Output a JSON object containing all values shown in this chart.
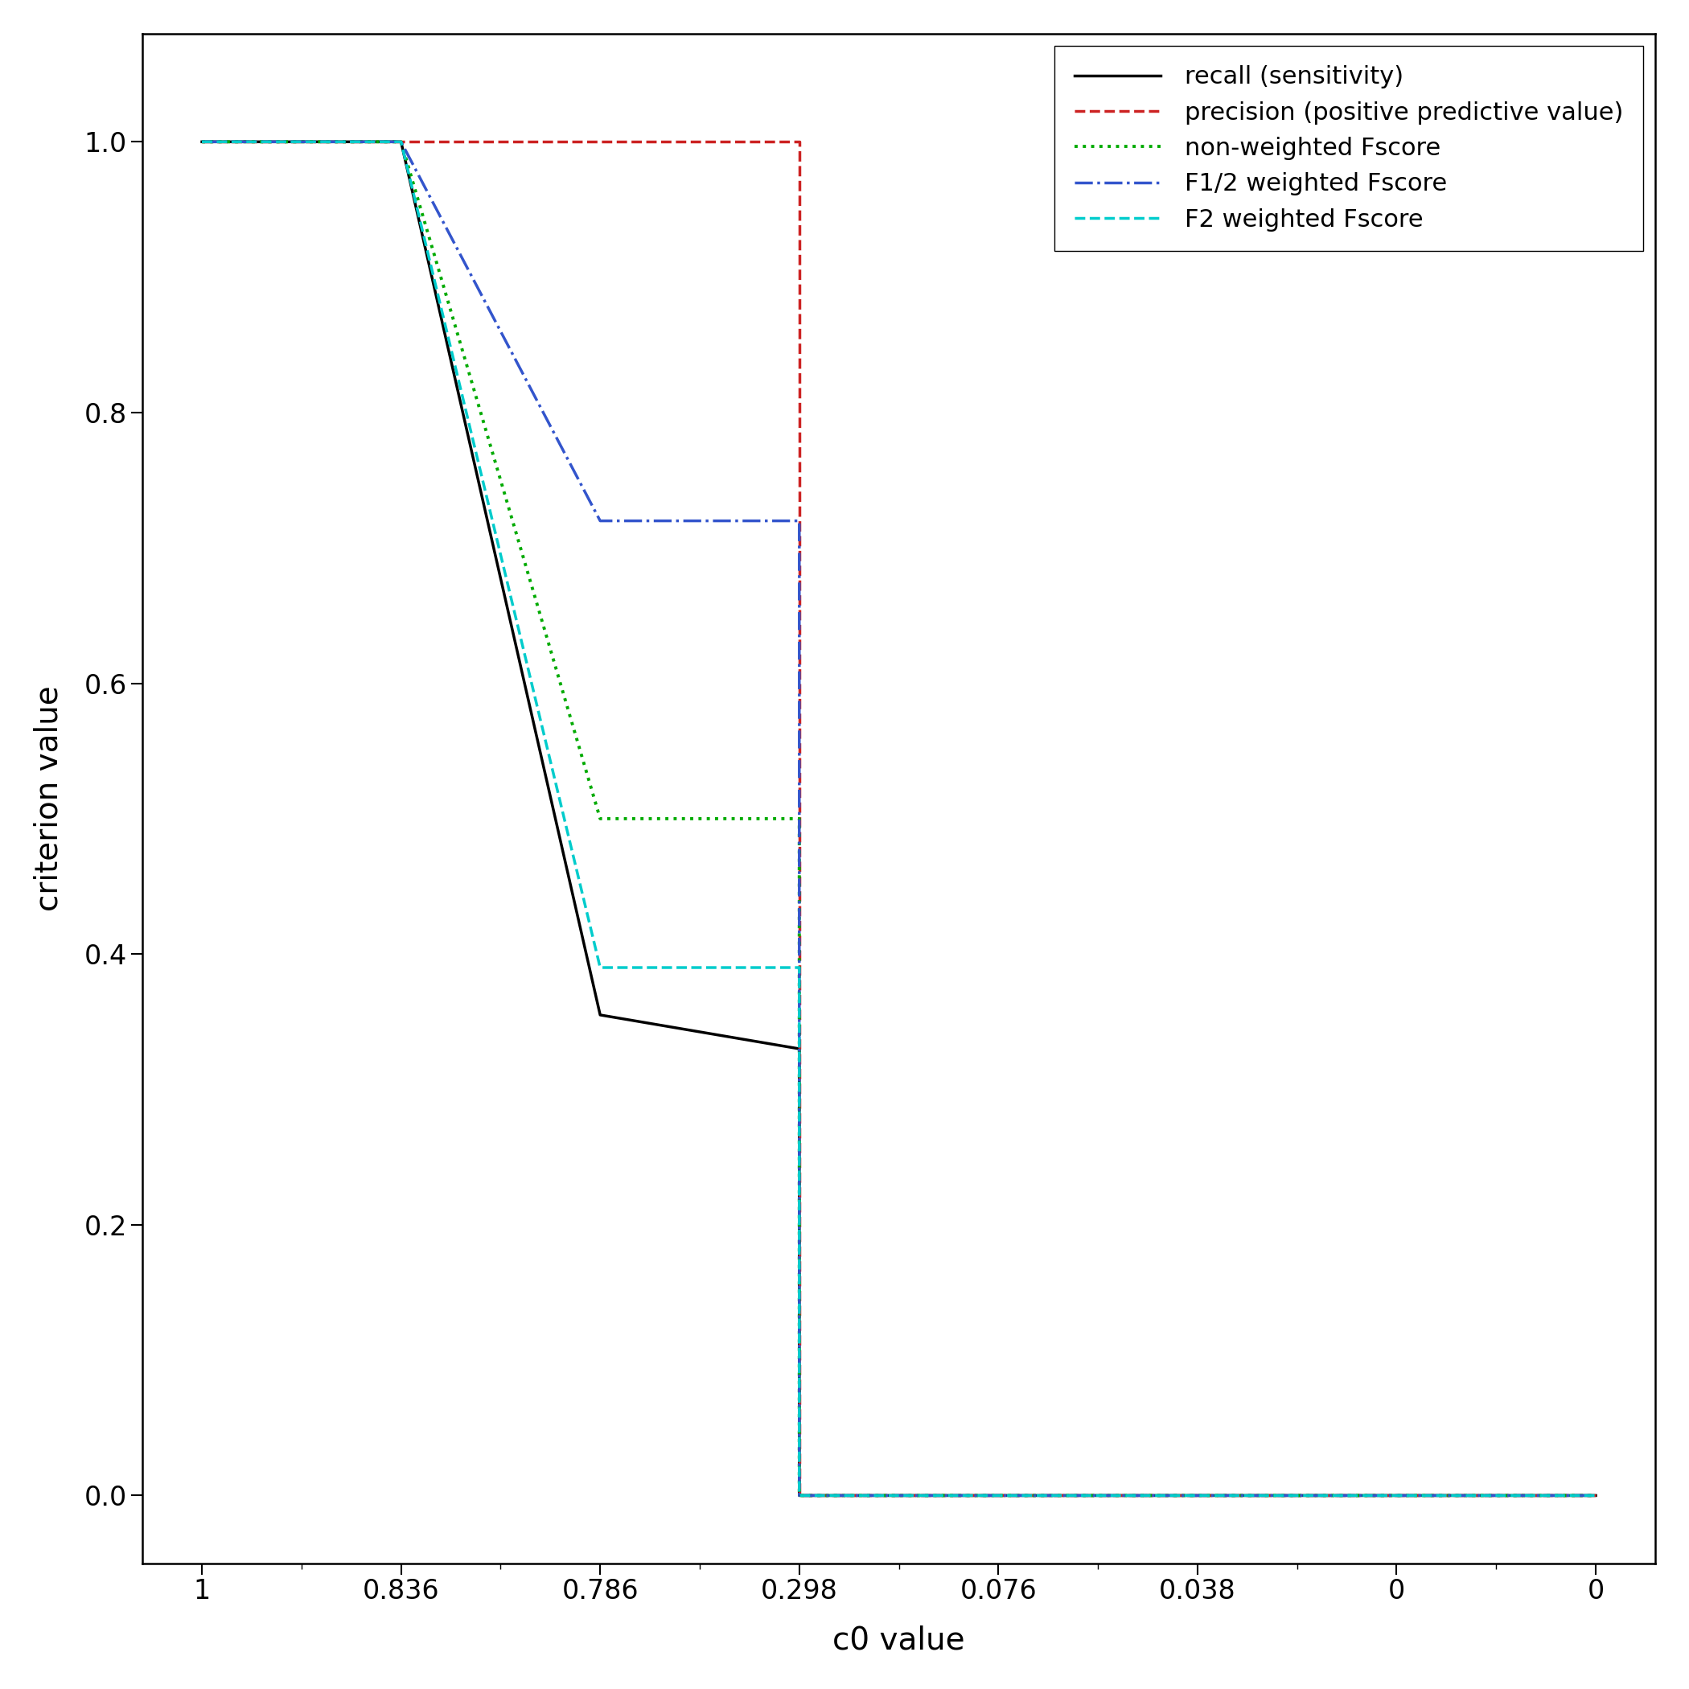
{
  "xlabel": "c0 value",
  "ylabel": "criterion value",
  "xtick_positions": [
    0,
    1,
    2,
    3,
    4,
    5,
    6,
    7
  ],
  "xtick_labels": [
    "1",
    "0.836",
    "0.786",
    "0.298",
    "0.076",
    "0.038",
    "0",
    "0"
  ],
  "ytick_positions": [
    0.0,
    0.2,
    0.4,
    0.6,
    0.8,
    1.0
  ],
  "ytick_labels": [
    "0.0",
    "0.2",
    "0.4",
    "0.6",
    "0.8",
    "1.0"
  ],
  "series": [
    {
      "key": "recall",
      "x": [
        0,
        1,
        1,
        2,
        2,
        3,
        3,
        4,
        4,
        5,
        5,
        6,
        6,
        7
      ],
      "y": [
        1.0,
        1.0,
        1.0,
        0.355,
        0.355,
        0.33,
        0.0,
        0.0,
        0.0,
        0.0,
        0.0,
        0.0,
        0.0,
        0.0
      ],
      "color": "#000000",
      "linestyle": "-",
      "linewidth": 2.5,
      "label": "recall (sensitivity)"
    },
    {
      "key": "precision",
      "x": [
        0,
        1,
        1,
        2,
        2,
        3,
        3,
        4,
        4,
        5,
        5,
        6,
        6,
        7
      ],
      "y": [
        1.0,
        1.0,
        1.0,
        1.0,
        1.0,
        1.0,
        0.0,
        0.0,
        0.0,
        0.0,
        0.0,
        0.0,
        0.0,
        0.0
      ],
      "color": "#cc2222",
      "linestyle": "--",
      "linewidth": 2.5,
      "label": "precision (positive predictive value)"
    },
    {
      "key": "fscore_nw",
      "x": [
        0,
        1,
        1,
        2,
        2,
        3,
        3,
        4,
        4,
        5,
        5,
        6,
        6,
        7
      ],
      "y": [
        1.0,
        1.0,
        1.0,
        0.5,
        0.5,
        0.5,
        0.0,
        0.0,
        0.0,
        0.0,
        0.0,
        0.0,
        0.0,
        0.0
      ],
      "color": "#00aa00",
      "linestyle": ":",
      "linewidth": 2.8,
      "label": "non-weighted Fscore"
    },
    {
      "key": "fscore_half",
      "x": [
        0,
        1,
        1,
        2,
        2,
        3,
        3,
        4,
        4,
        5,
        5,
        6,
        6,
        7
      ],
      "y": [
        1.0,
        1.0,
        1.0,
        0.72,
        0.72,
        0.72,
        0.0,
        0.0,
        0.0,
        0.0,
        0.0,
        0.0,
        0.0,
        0.0
      ],
      "color": "#3355cc",
      "linestyle": "-.",
      "linewidth": 2.5,
      "label": "F1/2 weighted Fscore"
    },
    {
      "key": "fscore_2",
      "x": [
        0,
        1,
        1,
        2,
        2,
        3,
        3,
        4,
        4,
        5,
        5,
        6,
        6,
        7
      ],
      "y": [
        1.0,
        1.0,
        1.0,
        0.39,
        0.39,
        0.39,
        0.0,
        0.0,
        0.0,
        0.0,
        0.0,
        0.0,
        0.0,
        0.0
      ],
      "color": "#00cccc",
      "linestyle": "--",
      "linewidth": 2.5,
      "label": "F2 weighted Fscore"
    }
  ],
  "xlim": [
    -0.3,
    7.3
  ],
  "ylim": [
    -0.05,
    1.08
  ],
  "background_color": "#ffffff",
  "label_fontsize": 28,
  "tick_fontsize": 24,
  "legend_fontsize": 22
}
